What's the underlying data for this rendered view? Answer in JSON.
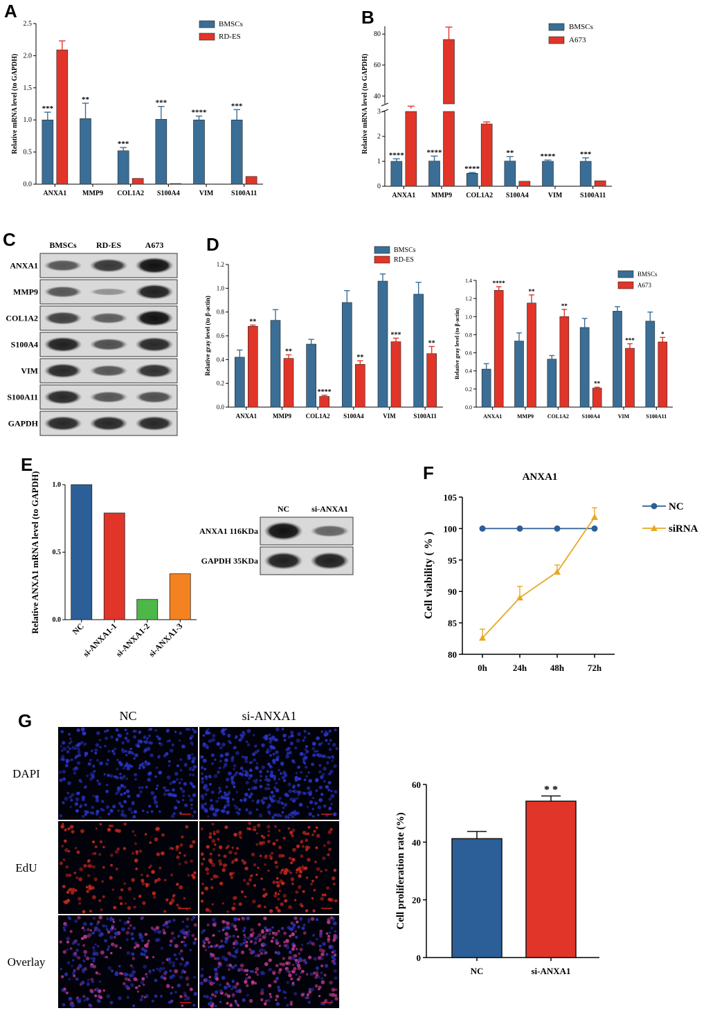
{
  "colors": {
    "blue": "#3A6E96",
    "red": "#E03528",
    "green": "#4DB748",
    "orange": "#F58220",
    "gold": "#E8A823",
    "navy": "#2C5F97"
  },
  "panels": {
    "A": "A",
    "B": "B",
    "C": "C",
    "D": "D",
    "E": "E",
    "F": "F",
    "G": "G"
  },
  "chart_data": [
    {
      "id": "A",
      "type": "bar",
      "categories": [
        "ANXA1",
        "MMP9",
        "COL1A2",
        "S100A4",
        "VIM",
        "S100A11"
      ],
      "series": [
        {
          "name": "BMSCs",
          "values": [
            1.0,
            1.02,
            0.52,
            1.01,
            1.0,
            1.0
          ],
          "errors": [
            0.12,
            0.24,
            0.05,
            0.2,
            0.06,
            0.16
          ]
        },
        {
          "name": "RD-ES",
          "values": [
            2.09,
            0.0,
            0.09,
            0.01,
            0.0,
            0.12
          ],
          "errors": [
            0.14,
            0,
            0,
            0,
            0,
            0
          ]
        }
      ],
      "significance": [
        "***",
        "**",
        "***",
        "***",
        "****",
        "***"
      ],
      "ylabel": "Relative mRNA level (to GAPDH)",
      "yticks": [
        "0.0",
        "0.5",
        "1.0",
        "1.5",
        "2.0",
        "2.5"
      ],
      "ylim": [
        0,
        2.5
      ]
    },
    {
      "id": "B",
      "type": "bar",
      "broken_axis": true,
      "categories": [
        "ANXA1",
        "MMP9",
        "COL1A2",
        "S100A4",
        "VIM",
        "S100A11"
      ],
      "series": [
        {
          "name": "BMSCs",
          "values": [
            1.0,
            1.01,
            0.52,
            1.01,
            1.0,
            1.0
          ],
          "errors": [
            0.1,
            0.2,
            0.03,
            0.18,
            0.05,
            0.14
          ]
        },
        {
          "name": "A673",
          "values": [
            32,
            76.5,
            2.5,
            0.2,
            0.0,
            0.22
          ],
          "errors": [
            1.5,
            8,
            0.08,
            0,
            0,
            0
          ]
        }
      ],
      "significance": [
        "****",
        "****",
        "****",
        "**",
        "****",
        "***"
      ],
      "ylabel": "Relative mRNA level (to GAPDH)",
      "yticks_lower": [
        "0",
        "1",
        "2",
        "3"
      ],
      "yticks_upper": [
        "40",
        "60",
        "80"
      ]
    },
    {
      "id": "D1",
      "type": "bar",
      "categories": [
        "ANXA1",
        "MMP9",
        "COL1A2",
        "S100A4",
        "VIM",
        "S100A11"
      ],
      "series": [
        {
          "name": "BMSCs",
          "values": [
            0.42,
            0.73,
            0.53,
            0.88,
            1.06,
            0.95
          ],
          "errors": [
            0.06,
            0.09,
            0.04,
            0.1,
            0.06,
            0.1
          ]
        },
        {
          "name": "RD-ES",
          "values": [
            0.68,
            0.41,
            0.09,
            0.36,
            0.55,
            0.45
          ],
          "errors": [
            0.01,
            0.03,
            0.01,
            0.03,
            0.03,
            0.06
          ]
        }
      ],
      "significance": [
        "**",
        "**",
        "****",
        "**",
        "***",
        "**"
      ],
      "ylabel": "Relative gray level (to β-actin)",
      "yticks": [
        "0.0",
        "0.2",
        "0.4",
        "0.6",
        "0.8",
        "1.0",
        "1.2"
      ],
      "ylim": [
        0,
        1.2
      ]
    },
    {
      "id": "D2",
      "type": "bar",
      "categories": [
        "ANXA1",
        "MMP9",
        "COL1A2",
        "S100A4",
        "VIM",
        "S100A11"
      ],
      "series": [
        {
          "name": "BMSCs",
          "values": [
            0.42,
            0.73,
            0.53,
            0.88,
            1.06,
            0.95
          ],
          "errors": [
            0.06,
            0.09,
            0.04,
            0.1,
            0.05,
            0.1
          ]
        },
        {
          "name": "A673",
          "values": [
            1.29,
            1.15,
            1.0,
            0.21,
            0.65,
            0.72
          ],
          "errors": [
            0.04,
            0.09,
            0.08,
            0.01,
            0.05,
            0.05
          ]
        }
      ],
      "significance": [
        "****",
        "**",
        "**",
        "**",
        "***",
        "*"
      ],
      "ylabel": "Relative gray level (to β-actin)",
      "yticks": [
        "0.0",
        "0.2",
        "0.4",
        "0.6",
        "0.8",
        "1.0",
        "1.2",
        "1.4"
      ],
      "ylim": [
        0,
        1.4
      ]
    },
    {
      "id": "E",
      "type": "bar",
      "categories": [
        "NC",
        "si-ANXA1-1",
        "si-ANXA1-2",
        "si-ANXA1-3"
      ],
      "values": [
        1.0,
        0.79,
        0.15,
        0.34
      ],
      "ylabel": "Relative ANXA1 mRNA level (to GAPDH)",
      "yticks": [
        "0.0",
        "0.5",
        "1.0"
      ],
      "ylim": [
        0,
        1.0
      ]
    },
    {
      "id": "F",
      "type": "line",
      "title": "ANXA1",
      "x": [
        "0h",
        "24h",
        "48h",
        "72h"
      ],
      "series": [
        {
          "name": "NC",
          "values": [
            100,
            100,
            100,
            100
          ]
        },
        {
          "name": "siRNA",
          "values": [
            82.6,
            89.0,
            93.1,
            101.8
          ],
          "errors": [
            1.4,
            1.8,
            1.1,
            1.5
          ]
        }
      ],
      "ylabel": "Cell viability ( % )",
      "yticks": [
        "80",
        "85",
        "90",
        "95",
        "100",
        "105"
      ],
      "ylim": [
        80,
        105
      ]
    },
    {
      "id": "G",
      "type": "bar",
      "categories": [
        "NC",
        "si-ANXA1"
      ],
      "values": [
        41.2,
        54.2
      ],
      "errors": [
        2.5,
        1.8
      ],
      "significance": [
        "",
        "* *"
      ],
      "ylabel": "Cell proliferation rate (%)",
      "yticks": [
        "0",
        "20",
        "40",
        "60"
      ],
      "ylim": [
        0,
        60
      ]
    }
  ],
  "western_C": {
    "columns": [
      "BMSCs",
      "RD-ES",
      "A673"
    ],
    "rows": [
      "ANXA1",
      "MMP9",
      "COL1A2",
      "S100A4",
      "VIM",
      "S100A11",
      "GAPDH"
    ],
    "intensity": [
      [
        0.55,
        0.75,
        1.0
      ],
      [
        0.55,
        0.15,
        0.9
      ],
      [
        0.7,
        0.5,
        1.0
      ],
      [
        0.9,
        0.6,
        0.85
      ],
      [
        0.85,
        0.55,
        0.8
      ],
      [
        0.85,
        0.55,
        0.6
      ],
      [
        0.85,
        0.85,
        0.85
      ]
    ]
  },
  "western_E": {
    "columns": [
      "NC",
      "si-ANXA1"
    ],
    "rows": [
      "ANXA1 116KDa",
      "GAPDH 35KDa"
    ],
    "intensity": [
      [
        1.0,
        0.45
      ],
      [
        0.9,
        0.9
      ]
    ]
  },
  "microscopy_G": {
    "columns": [
      "NC",
      "si-ANXA1"
    ],
    "rows": [
      "DAPI",
      "EdU",
      "Overlay"
    ]
  }
}
